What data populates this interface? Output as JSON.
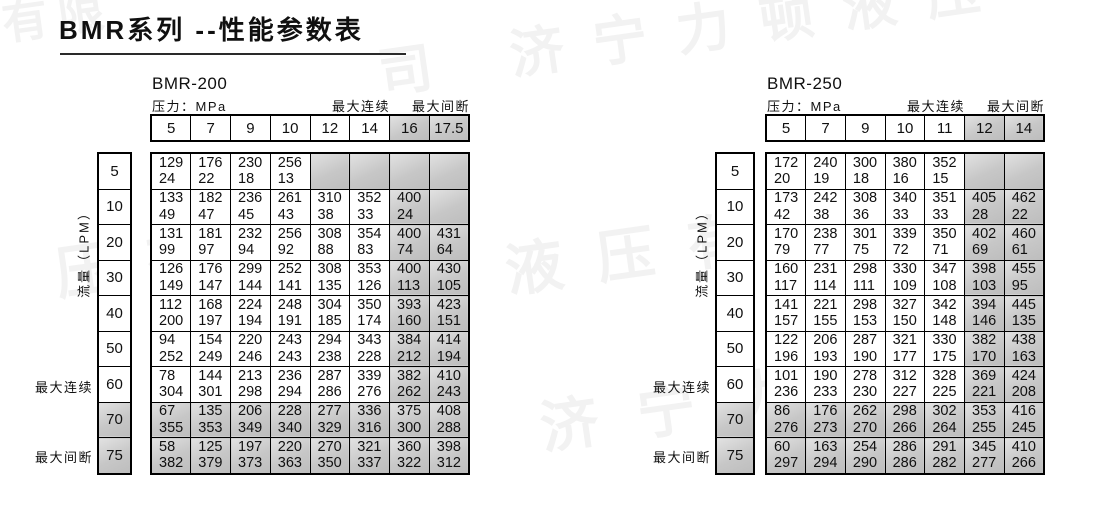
{
  "page": {
    "title": "BMR系列 --性能参数表"
  },
  "labels": {
    "pressure_unit": "压力：MPa",
    "max_continuous": "最大连续",
    "max_intermittent": "最大间断",
    "flow_axis": "流量（LPM）"
  },
  "watermark": {
    "company": "济宁力顿液压有限公司",
    "fragments": [
      "司 济宁力顿液压",
      "压有限公",
      "液压有限公司",
      "济宁力顿",
      "有限"
    ]
  },
  "colors": {
    "gray_fill": "#c7c7c7",
    "border": "#000000",
    "text": "#101010"
  },
  "tables": [
    {
      "name": "BMR-200",
      "pressures": [
        "5",
        "7",
        "9",
        "10",
        "12",
        "14",
        "16",
        "17.5"
      ],
      "gray_pressure_from": 6,
      "flows": [
        "5",
        "10",
        "20",
        "30",
        "40",
        "50",
        "60",
        "70",
        "75"
      ],
      "gray_flow_from": 7,
      "rows": [
        [
          [
            "129",
            "24"
          ],
          [
            "176",
            "22"
          ],
          [
            "230",
            "18"
          ],
          [
            "256",
            "13"
          ],
          null,
          null,
          null,
          null
        ],
        [
          [
            "133",
            "49"
          ],
          [
            "182",
            "47"
          ],
          [
            "236",
            "45"
          ],
          [
            "261",
            "43"
          ],
          [
            "310",
            "38"
          ],
          [
            "352",
            "33"
          ],
          [
            "400",
            "24"
          ],
          null
        ],
        [
          [
            "131",
            "99"
          ],
          [
            "181",
            "97"
          ],
          [
            "232",
            "94"
          ],
          [
            "256",
            "92"
          ],
          [
            "308",
            "88"
          ],
          [
            "354",
            "83"
          ],
          [
            "400",
            "74"
          ],
          [
            "431",
            "64"
          ]
        ],
        [
          [
            "126",
            "149"
          ],
          [
            "176",
            "147"
          ],
          [
            "299",
            "144"
          ],
          [
            "252",
            "141"
          ],
          [
            "308",
            "135"
          ],
          [
            "353",
            "126"
          ],
          [
            "400",
            "113"
          ],
          [
            "430",
            "105"
          ]
        ],
        [
          [
            "112",
            "200"
          ],
          [
            "168",
            "197"
          ],
          [
            "224",
            "194"
          ],
          [
            "248",
            "191"
          ],
          [
            "304",
            "185"
          ],
          [
            "350",
            "174"
          ],
          [
            "393",
            "160"
          ],
          [
            "423",
            "151"
          ]
        ],
        [
          [
            "94",
            "252"
          ],
          [
            "154",
            "249"
          ],
          [
            "220",
            "246"
          ],
          [
            "243",
            "243"
          ],
          [
            "294",
            "238"
          ],
          [
            "343",
            "228"
          ],
          [
            "384",
            "212"
          ],
          [
            "414",
            "194"
          ]
        ],
        [
          [
            "78",
            "304"
          ],
          [
            "144",
            "301"
          ],
          [
            "213",
            "298"
          ],
          [
            "236",
            "294"
          ],
          [
            "287",
            "286"
          ],
          [
            "339",
            "276"
          ],
          [
            "382",
            "262"
          ],
          [
            "410",
            "243"
          ]
        ],
        [
          [
            "67",
            "355"
          ],
          [
            "135",
            "353"
          ],
          [
            "206",
            "349"
          ],
          [
            "228",
            "340"
          ],
          [
            "277",
            "329"
          ],
          [
            "336",
            "316"
          ],
          [
            "375",
            "300"
          ],
          [
            "408",
            "288"
          ]
        ],
        [
          [
            "58",
            "382"
          ],
          [
            "125",
            "379"
          ],
          [
            "197",
            "373"
          ],
          [
            "220",
            "363"
          ],
          [
            "270",
            "350"
          ],
          [
            "321",
            "337"
          ],
          [
            "360",
            "322"
          ],
          [
            "398",
            "312"
          ]
        ]
      ]
    },
    {
      "name": "BMR-250",
      "pressures": [
        "5",
        "7",
        "9",
        "10",
        "11",
        "12",
        "14"
      ],
      "gray_pressure_from": 5,
      "flows": [
        "5",
        "10",
        "20",
        "30",
        "40",
        "50",
        "60",
        "70",
        "75"
      ],
      "gray_flow_from": 7,
      "rows": [
        [
          [
            "172",
            "20"
          ],
          [
            "240",
            "19"
          ],
          [
            "300",
            "18"
          ],
          [
            "380",
            "16"
          ],
          [
            "352",
            "15"
          ],
          null,
          null
        ],
        [
          [
            "173",
            "42"
          ],
          [
            "242",
            "38"
          ],
          [
            "308",
            "36"
          ],
          [
            "340",
            "33"
          ],
          [
            "351",
            "33"
          ],
          [
            "405",
            "28"
          ],
          [
            "462",
            "22"
          ]
        ],
        [
          [
            "170",
            "79"
          ],
          [
            "238",
            "77"
          ],
          [
            "301",
            "75"
          ],
          [
            "339",
            "72"
          ],
          [
            "350",
            "71"
          ],
          [
            "402",
            "69"
          ],
          [
            "460",
            "61"
          ]
        ],
        [
          [
            "160",
            "117"
          ],
          [
            "231",
            "114"
          ],
          [
            "298",
            "111"
          ],
          [
            "330",
            "109"
          ],
          [
            "347",
            "108"
          ],
          [
            "398",
            "103"
          ],
          [
            "455",
            "95"
          ]
        ],
        [
          [
            "141",
            "157"
          ],
          [
            "221",
            "155"
          ],
          [
            "298",
            "153"
          ],
          [
            "327",
            "150"
          ],
          [
            "342",
            "148"
          ],
          [
            "394",
            "146"
          ],
          [
            "445",
            "135"
          ]
        ],
        [
          [
            "122",
            "196"
          ],
          [
            "206",
            "193"
          ],
          [
            "287",
            "190"
          ],
          [
            "321",
            "177"
          ],
          [
            "330",
            "175"
          ],
          [
            "382",
            "170"
          ],
          [
            "438",
            "163"
          ]
        ],
        [
          [
            "101",
            "236"
          ],
          [
            "190",
            "233"
          ],
          [
            "278",
            "230"
          ],
          [
            "312",
            "227"
          ],
          [
            "328",
            "225"
          ],
          [
            "369",
            "221"
          ],
          [
            "424",
            "208"
          ]
        ],
        [
          [
            "86",
            "276"
          ],
          [
            "176",
            "273"
          ],
          [
            "262",
            "270"
          ],
          [
            "298",
            "266"
          ],
          [
            "302",
            "264"
          ],
          [
            "353",
            "255"
          ],
          [
            "416",
            "245"
          ]
        ],
        [
          [
            "60",
            "297"
          ],
          [
            "163",
            "294"
          ],
          [
            "254",
            "290"
          ],
          [
            "286",
            "286"
          ],
          [
            "291",
            "282"
          ],
          [
            "345",
            "277"
          ],
          [
            "410",
            "266"
          ]
        ]
      ]
    }
  ]
}
